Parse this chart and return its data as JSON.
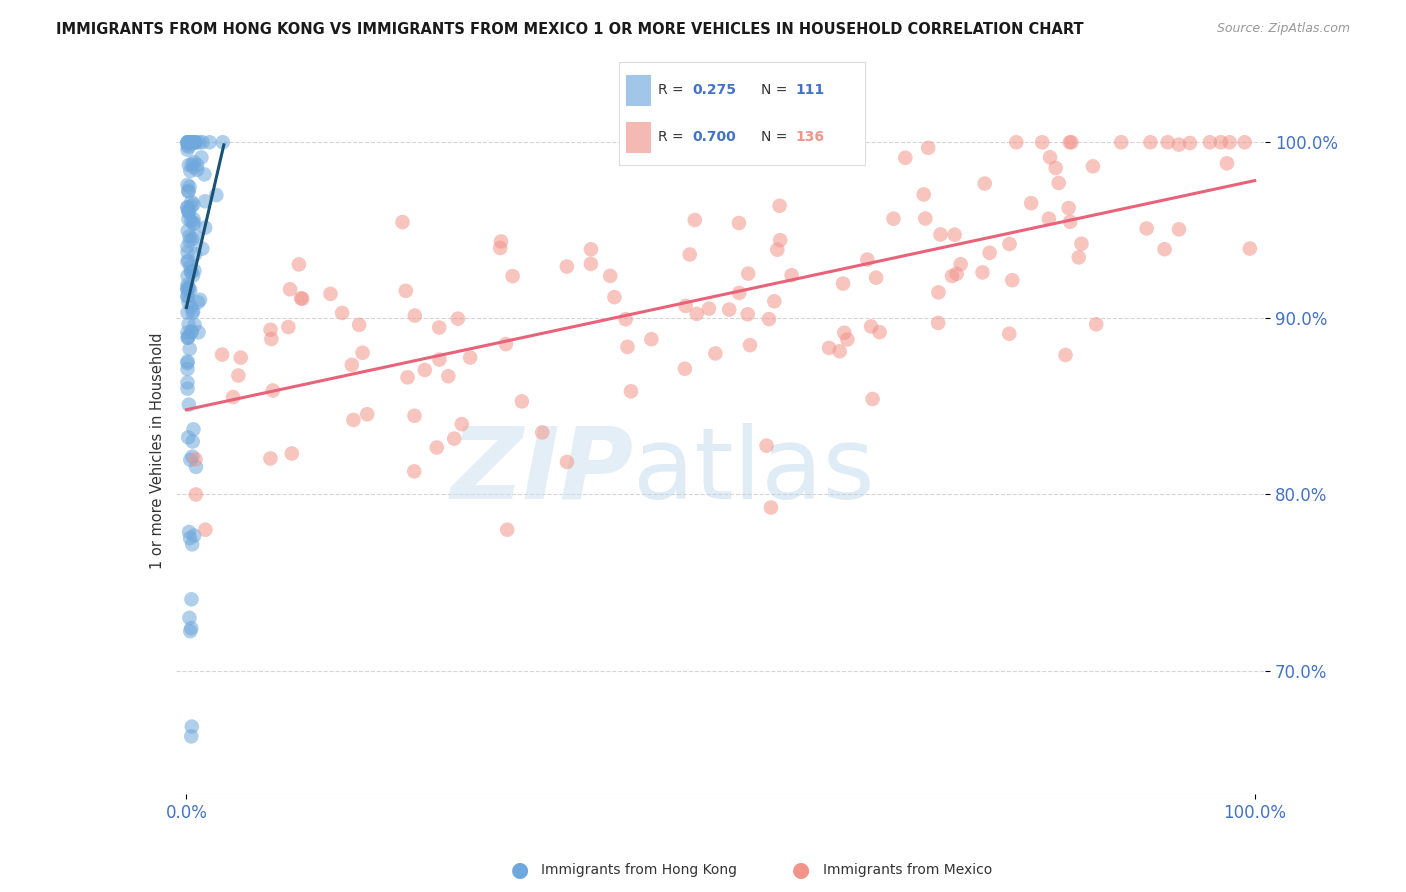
{
  "title": "IMMIGRANTS FROM HONG KONG VS IMMIGRANTS FROM MEXICO 1 OR MORE VEHICLES IN HOUSEHOLD CORRELATION CHART",
  "source": "Source: ZipAtlas.com",
  "ylabel": "1 or more Vehicles in Household",
  "legend_hk_R": "0.275",
  "legend_hk_N": "111",
  "legend_mx_R": "0.700",
  "legend_mx_N": "136",
  "hk_color": "#6fa8dc",
  "hk_line_color": "#1a5276",
  "mx_color": "#f1948a",
  "mx_line_color": "#e8627a",
  "watermark_zip_color": "#d6e9f8",
  "watermark_atlas_color": "#b8d4ea",
  "background_color": "#ffffff",
  "grid_color": "#cccccc",
  "tick_color": "#4472c4",
  "title_color": "#1a1a1a",
  "ylabel_color": "#333333",
  "source_color": "#999999",
  "xlim": [
    0.0,
    1.0
  ],
  "ylim": [
    0.63,
    1.02
  ],
  "xticks": [
    0.0,
    1.0
  ],
  "xticklabels": [
    "0.0%",
    "100.0%"
  ],
  "yticks": [
    0.7,
    0.8,
    0.9,
    1.0
  ],
  "yticklabels": [
    "70.0%",
    "80.0%",
    "90.0%",
    "100.0%"
  ],
  "hk_scatter_seed": 42,
  "mx_scatter_seed": 99
}
